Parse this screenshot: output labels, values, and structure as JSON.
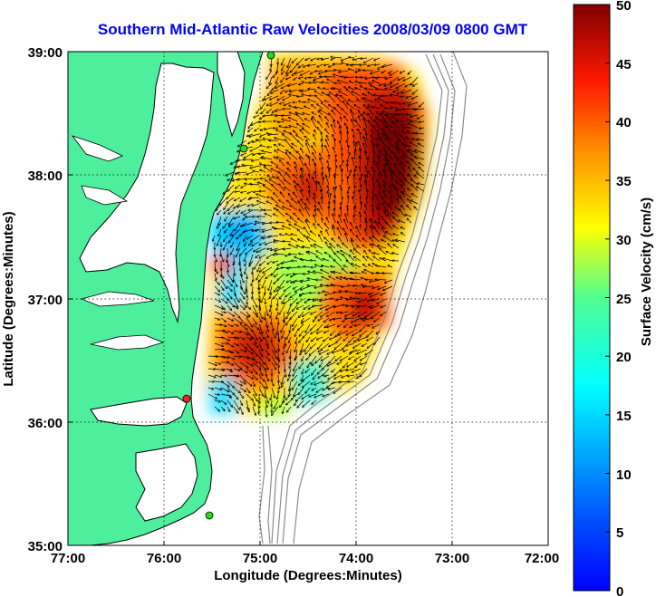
{
  "title": "Southern Mid-Atlantic Raw Velocities 2008/03/09 0800 GMT",
  "x_axis": {
    "label": "Longitude (Degrees:Minutes)",
    "ticks": [
      "77:00",
      "76:00",
      "75:00",
      "74:00",
      "73:00",
      "72:00"
    ]
  },
  "y_axis": {
    "label": "Latitude (Degrees:Minutes)",
    "ticks": [
      "39:00",
      "38:00",
      "37:00",
      "36:00",
      "35:00"
    ]
  },
  "colorbar": {
    "label": "Surface Velocity (cm/s)",
    "ticks": [
      "50",
      "45",
      "40",
      "35",
      "30",
      "25",
      "20",
      "15",
      "10",
      "5",
      "0"
    ],
    "range": [
      0,
      50
    ],
    "colormap": "jet"
  },
  "colors": {
    "land": "#4dee9c",
    "coastline": "#000000",
    "bathymetry": "#8c8c8c",
    "title": "#0000ff",
    "station_active": "#22dd22",
    "station_alert": "#ff2020"
  },
  "stations": [
    {
      "lon": -75.1,
      "lat": 38.95,
      "status": "active"
    },
    {
      "lon": -75.15,
      "lat": 38.2,
      "status": "active"
    },
    {
      "lon": -75.72,
      "lat": 36.18,
      "status": "alert"
    },
    {
      "lon": -75.5,
      "lat": 35.27,
      "status": "active"
    }
  ]
}
